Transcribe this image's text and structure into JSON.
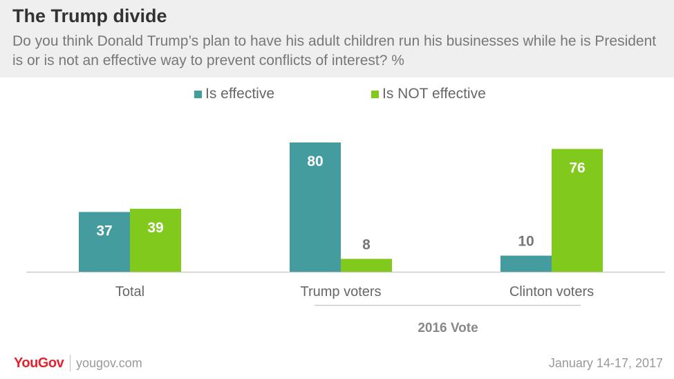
{
  "header": {
    "title": "The Trump divide",
    "subtitle": "Do you think Donald Trump’s plan to have his adult children run his businesses while he is President is or is not an effective way to prevent conflicts of interest? %"
  },
  "colors": {
    "effective": "#459c9f",
    "not_effective": "#82c91e",
    "label_light": "#ffffff",
    "label_dark": "#777777",
    "axis": "#cccccc"
  },
  "chart_data": {
    "type": "bar",
    "categories": [
      "Total",
      "Trump voters",
      "Clinton voters"
    ],
    "series": [
      {
        "name": "Is effective",
        "values": [
          37,
          80,
          10
        ]
      },
      {
        "name": "Is NOT effective",
        "values": [
          39,
          8,
          76
        ]
      }
    ],
    "group_label": "2016 Vote",
    "ylim": [
      0,
      85
    ],
    "grid": false,
    "legend": "top-center"
  },
  "footer": {
    "brand": "YouGov",
    "site": "yougov.com",
    "date": "January 14-17, 2017"
  }
}
